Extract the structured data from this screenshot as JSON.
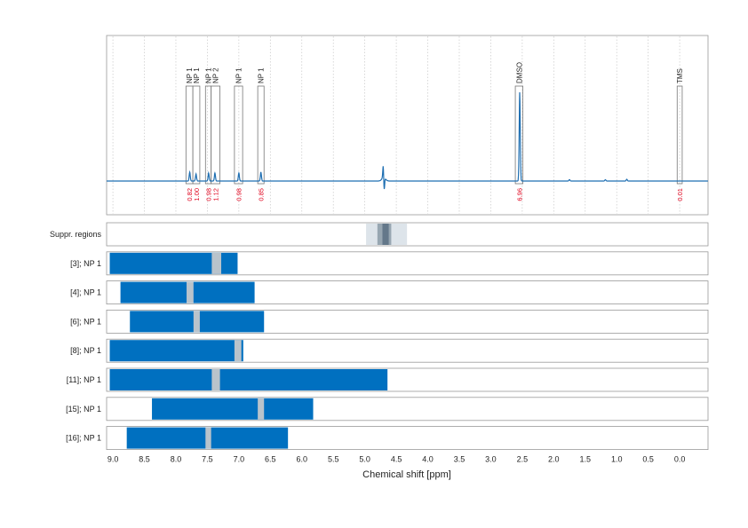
{
  "chart_data": {
    "type": "line",
    "xlabel": "Chemical shift [ppm]",
    "xlim": [
      9.1,
      -0.45
    ],
    "x_reversed": true,
    "x_ticks": [
      "9.0",
      "8.5",
      "8.0",
      "7.5",
      "7.0",
      "6.5",
      "6.0",
      "5.5",
      "5.0",
      "4.5",
      "4.0",
      "3.5",
      "3.0",
      "2.5",
      "2.0",
      "1.5",
      "1.0",
      "0.5",
      "0.0"
    ],
    "grid": "vertical dotted",
    "spectrum": {
      "color": "#1f6fb2",
      "peaks": [
        {
          "ppm": 7.78,
          "height": 0.1
        },
        {
          "ppm": 7.68,
          "height": 0.08
        },
        {
          "ppm": 7.48,
          "height": 0.09
        },
        {
          "ppm": 7.38,
          "height": 0.09
        },
        {
          "ppm": 7.0,
          "height": 0.09
        },
        {
          "ppm": 6.65,
          "height": 0.1
        },
        {
          "ppm": 2.54,
          "height": 1.0
        },
        {
          "ppm": 0.84,
          "height": 0.02
        },
        {
          "ppm": 1.18,
          "height": 0.015
        },
        {
          "ppm": 1.75,
          "height": 0.015
        }
      ],
      "water_ppm": 4.7
    },
    "annotations": [
      {
        "label": "NP 1",
        "ppm_from": 7.84,
        "ppm_to": 7.73,
        "integral": "0.82"
      },
      {
        "label": "NP 1",
        "ppm_from": 7.73,
        "ppm_to": 7.62,
        "integral": "1.00"
      },
      {
        "label": "NP 1",
        "ppm_from": 7.53,
        "ppm_to": 7.44,
        "integral": "0.98"
      },
      {
        "label": "NP 2",
        "ppm_from": 7.44,
        "ppm_to": 7.3,
        "integral": "1.12"
      },
      {
        "label": "NP 1",
        "ppm_from": 7.07,
        "ppm_to": 6.94,
        "integral": "0.98"
      },
      {
        "label": "NP 1",
        "ppm_from": 6.7,
        "ppm_to": 6.6,
        "integral": "0.85"
      },
      {
        "label": "DMSO",
        "ppm_from": 2.61,
        "ppm_to": 2.49,
        "integral": "6.96"
      },
      {
        "label": "TMS",
        "ppm_from": 0.04,
        "ppm_to": -0.04,
        "integral": "0.01"
      }
    ],
    "suppression": {
      "label": "Suppr. regions",
      "bands": [
        {
          "from": 4.98,
          "to": 4.33,
          "shade": "#dde4ea"
        },
        {
          "from": 4.8,
          "to": 4.58,
          "shade": "#97a6b1"
        },
        {
          "from": 4.72,
          "to": 4.62,
          "shade": "#64788a"
        }
      ]
    },
    "rows": [
      {
        "label": "[3]; NP 1",
        "from": 9.05,
        "to": 7.02,
        "gap_from": 7.43,
        "gap_to": 7.28
      },
      {
        "label": "[4]; NP 1",
        "from": 8.88,
        "to": 6.75,
        "gap_from": 7.83,
        "gap_to": 7.72
      },
      {
        "label": "[6]; NP 1",
        "from": 8.73,
        "to": 6.6,
        "gap_from": 7.72,
        "gap_to": 7.62
      },
      {
        "label": "[8]; NP 1",
        "from": 9.05,
        "to": 6.93,
        "gap_from": 7.07,
        "gap_to": 6.96
      },
      {
        "label": "[11]; NP 1",
        "from": 9.05,
        "to": 4.64,
        "gap_from": 7.43,
        "gap_to": 7.3
      },
      {
        "label": "[15]; NP 1",
        "from": 8.38,
        "to": 5.82,
        "gap_from": 6.7,
        "gap_to": 6.6
      },
      {
        "label": "[16]; NP 1",
        "from": 8.78,
        "to": 6.22,
        "gap_from": 7.53,
        "gap_to": 7.44
      }
    ],
    "bar_color": "#0070c0",
    "gap_color": "#b9c3cb"
  }
}
